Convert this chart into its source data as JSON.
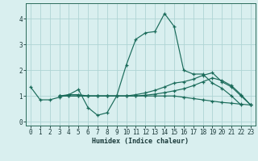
{
  "xlabel": "Humidex (Indice chaleur)",
  "ylabel": "",
  "xlim": [
    -0.5,
    23.5
  ],
  "ylim": [
    -0.15,
    4.6
  ],
  "xticks": [
    0,
    1,
    2,
    3,
    4,
    5,
    6,
    7,
    8,
    9,
    10,
    11,
    12,
    13,
    14,
    15,
    16,
    17,
    18,
    19,
    20,
    21,
    22,
    23
  ],
  "yticks": [
    0,
    1,
    2,
    3,
    4
  ],
  "background_color": "#d9efef",
  "grid_color": "#aed4d4",
  "line_color": "#1a6b5a",
  "lines": [
    {
      "x": [
        0,
        1,
        2,
        3,
        4,
        5,
        6,
        7,
        8,
        9,
        10,
        11,
        12,
        13,
        14,
        15,
        16,
        17,
        18,
        19,
        20,
        21,
        22
      ],
      "y": [
        1.35,
        0.85,
        0.85,
        0.95,
        1.05,
        1.25,
        0.55,
        0.25,
        0.35,
        1.0,
        2.2,
        3.2,
        3.45,
        3.5,
        4.2,
        3.7,
        2.0,
        1.85,
        1.85,
        1.5,
        1.3,
        1.0,
        0.65
      ]
    },
    {
      "x": [
        3,
        4,
        5,
        6,
        7,
        8,
        9,
        10,
        11,
        12,
        13,
        14,
        15,
        16,
        17,
        18,
        19,
        20,
        21,
        22,
        23
      ],
      "y": [
        1.0,
        1.05,
        1.05,
        1.0,
        1.0,
        1.0,
        1.0,
        1.0,
        1.05,
        1.12,
        1.22,
        1.35,
        1.5,
        1.55,
        1.65,
        1.8,
        1.9,
        1.55,
        1.35,
        1.0,
        0.65
      ]
    },
    {
      "x": [
        3,
        4,
        5,
        6,
        7,
        8,
        9,
        10,
        11,
        12,
        13,
        14,
        15,
        16,
        17,
        18,
        19,
        20,
        21,
        22,
        23
      ],
      "y": [
        1.0,
        1.0,
        1.0,
        1.0,
        1.0,
        1.0,
        1.0,
        1.0,
        1.0,
        1.03,
        1.07,
        1.13,
        1.2,
        1.28,
        1.4,
        1.55,
        1.7,
        1.6,
        1.4,
        1.05,
        0.65
      ]
    },
    {
      "x": [
        3,
        4,
        5,
        6,
        7,
        8,
        9,
        10,
        11,
        12,
        13,
        14,
        15,
        16,
        17,
        18,
        19,
        20,
        21,
        22,
        23
      ],
      "y": [
        1.0,
        1.0,
        1.0,
        1.0,
        1.0,
        1.0,
        1.0,
        1.0,
        1.0,
        1.0,
        1.0,
        1.0,
        1.0,
        0.95,
        0.9,
        0.85,
        0.8,
        0.75,
        0.72,
        0.68,
        0.65
      ]
    }
  ]
}
